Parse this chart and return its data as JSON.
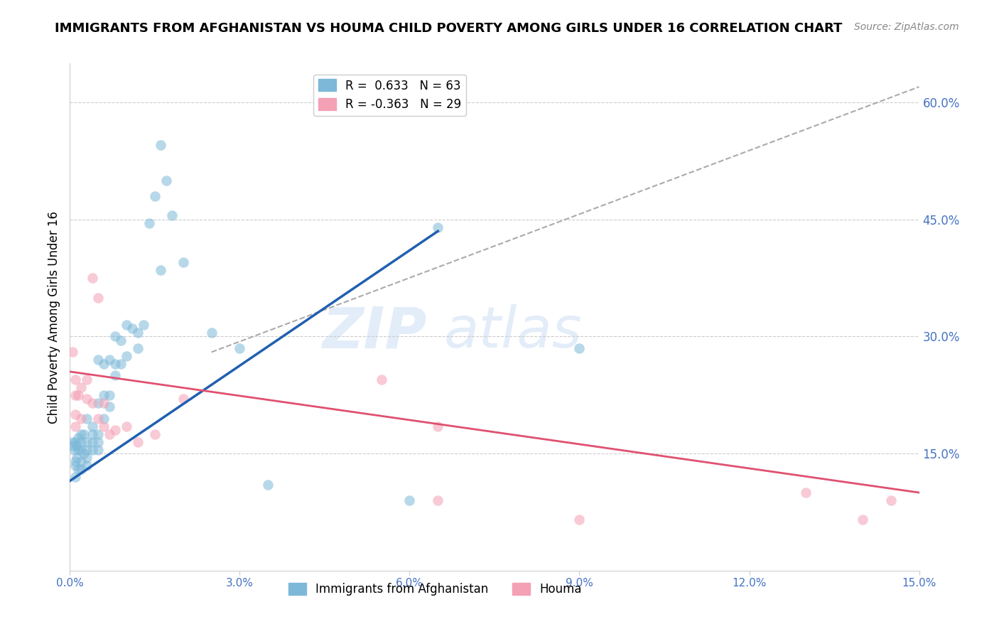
{
  "title": "IMMIGRANTS FROM AFGHANISTAN VS HOUMA CHILD POVERTY AMONG GIRLS UNDER 16 CORRELATION CHART",
  "source": "Source: ZipAtlas.com",
  "ylabel": "Child Poverty Among Girls Under 16",
  "xlim": [
    0.0,
    0.15
  ],
  "ylim": [
    0.0,
    0.65
  ],
  "xticks": [
    0.0,
    0.03,
    0.06,
    0.09,
    0.12,
    0.15
  ],
  "yticks_right": [
    0.15,
    0.3,
    0.45,
    0.6
  ],
  "ytick_labels_right": [
    "15.0%",
    "30.0%",
    "45.0%",
    "60.0%"
  ],
  "xtick_labels": [
    "0.0%",
    "3.0%",
    "6.0%",
    "9.0%",
    "12.0%",
    "15.0%"
  ],
  "legend_entry1": "R =  0.633   N = 63",
  "legend_entry2": "R = -0.363   N = 29",
  "legend_color1": "#7db8d8",
  "legend_color2": "#f4a0b5",
  "watermark": "ZIPatlas",
  "blue_scatter_x": [
    0.0005,
    0.0005,
    0.0008,
    0.001,
    0.001,
    0.001,
    0.001,
    0.0012,
    0.0012,
    0.0015,
    0.0015,
    0.0015,
    0.002,
    0.002,
    0.002,
    0.002,
    0.002,
    0.0025,
    0.0025,
    0.003,
    0.003,
    0.003,
    0.003,
    0.003,
    0.004,
    0.004,
    0.004,
    0.004,
    0.005,
    0.005,
    0.005,
    0.005,
    0.005,
    0.006,
    0.006,
    0.006,
    0.007,
    0.007,
    0.007,
    0.008,
    0.008,
    0.008,
    0.009,
    0.009,
    0.01,
    0.01,
    0.011,
    0.012,
    0.012,
    0.013,
    0.014,
    0.015,
    0.016,
    0.016,
    0.017,
    0.018,
    0.02,
    0.025,
    0.03,
    0.035,
    0.06,
    0.065,
    0.09
  ],
  "blue_scatter_y": [
    0.16,
    0.165,
    0.155,
    0.12,
    0.135,
    0.14,
    0.165,
    0.145,
    0.16,
    0.13,
    0.155,
    0.17,
    0.13,
    0.14,
    0.155,
    0.165,
    0.175,
    0.15,
    0.175,
    0.135,
    0.145,
    0.155,
    0.165,
    0.195,
    0.155,
    0.165,
    0.175,
    0.185,
    0.155,
    0.165,
    0.175,
    0.215,
    0.27,
    0.195,
    0.225,
    0.265,
    0.21,
    0.225,
    0.27,
    0.25,
    0.265,
    0.3,
    0.265,
    0.295,
    0.275,
    0.315,
    0.31,
    0.285,
    0.305,
    0.315,
    0.445,
    0.48,
    0.385,
    0.545,
    0.5,
    0.455,
    0.395,
    0.305,
    0.285,
    0.11,
    0.09,
    0.44,
    0.285
  ],
  "pink_scatter_x": [
    0.0005,
    0.001,
    0.001,
    0.001,
    0.001,
    0.0015,
    0.002,
    0.002,
    0.003,
    0.003,
    0.004,
    0.004,
    0.005,
    0.005,
    0.006,
    0.006,
    0.007,
    0.008,
    0.01,
    0.012,
    0.015,
    0.02,
    0.055,
    0.065,
    0.065,
    0.09,
    0.13,
    0.14,
    0.145
  ],
  "pink_scatter_y": [
    0.28,
    0.245,
    0.225,
    0.2,
    0.185,
    0.225,
    0.235,
    0.195,
    0.22,
    0.245,
    0.375,
    0.215,
    0.35,
    0.195,
    0.215,
    0.185,
    0.175,
    0.18,
    0.185,
    0.165,
    0.175,
    0.22,
    0.245,
    0.185,
    0.09,
    0.065,
    0.1,
    0.065,
    0.09
  ],
  "blue_line_x": [
    0.0,
    0.065
  ],
  "blue_line_y": [
    0.115,
    0.435
  ],
  "pink_line_x": [
    0.0,
    0.15
  ],
  "pink_line_y": [
    0.255,
    0.1
  ],
  "diag_line_x": [
    0.025,
    0.15
  ],
  "diag_line_y": [
    0.28,
    0.62
  ],
  "scatter_size": 110,
  "scatter_alpha": 0.55,
  "grid_color": "#cccccc",
  "title_fontsize": 13,
  "tick_label_color": "#4472c4",
  "bottom_legend_label1": "Immigrants from Afghanistan",
  "bottom_legend_label2": "Houma"
}
